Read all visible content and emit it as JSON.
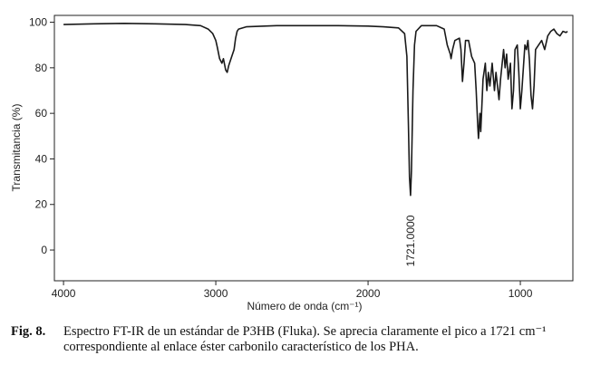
{
  "chart_data": {
    "type": "line",
    "xlabel": "Número de onda (cm⁻¹)",
    "ylabel": "Transmitancia (%)",
    "annotation": {
      "text": "1721.0000",
      "x": 1721
    },
    "color": "#1a1a1a",
    "xlim": [
      4060,
      655
    ],
    "xticks": [
      4000,
      3000,
      2000,
      1000
    ],
    "ylim": [
      -13.5,
      103
    ],
    "yticks": [
      0,
      20,
      40,
      60,
      80,
      100
    ],
    "x": [
      4000,
      3800,
      3600,
      3400,
      3200,
      3100,
      3050,
      3020,
      3000,
      2990,
      2975,
      2960,
      2950,
      2935,
      2925,
      2915,
      2900,
      2880,
      2870,
      2860,
      2850,
      2800,
      2600,
      2400,
      2200,
      2000,
      1900,
      1800,
      1760,
      1745,
      1735,
      1728,
      1721,
      1715,
      1705,
      1695,
      1685,
      1650,
      1550,
      1500,
      1480,
      1460,
      1455,
      1445,
      1430,
      1400,
      1390,
      1380,
      1370,
      1360,
      1340,
      1320,
      1300,
      1290,
      1280,
      1275,
      1265,
      1260,
      1245,
      1230,
      1220,
      1210,
      1200,
      1185,
      1170,
      1160,
      1140,
      1130,
      1110,
      1100,
      1090,
      1080,
      1065,
      1055,
      1045,
      1035,
      1020,
      1010,
      1000,
      990,
      980,
      970,
      960,
      950,
      940,
      930,
      920,
      910,
      900,
      880,
      860,
      840,
      820,
      800,
      780,
      760,
      740,
      720,
      700,
      690
    ],
    "values": [
      99,
      99.3,
      99.5,
      99.3,
      99,
      98.5,
      97,
      95,
      92,
      89,
      84,
      82,
      84,
      79,
      78,
      81,
      84,
      88,
      93,
      96,
      97,
      98,
      98.5,
      98.5,
      98.5,
      98.3,
      98,
      97.5,
      95,
      85,
      55,
      32,
      24,
      35,
      70,
      90,
      96,
      98.5,
      98.5,
      97,
      90,
      86,
      84,
      88,
      92,
      93,
      88,
      74,
      82,
      92,
      92,
      85,
      82,
      70,
      55,
      49,
      60,
      52,
      75,
      82,
      70,
      78,
      72,
      82,
      70,
      78,
      66,
      75,
      88,
      80,
      86,
      75,
      82,
      62,
      70,
      88,
      90,
      78,
      62,
      70,
      80,
      90,
      88,
      92,
      83,
      68,
      62,
      72,
      88,
      90,
      92,
      88,
      94,
      96,
      97,
      95,
      94,
      96,
      95.5,
      96
    ]
  },
  "figure_label": "Fig. 8.",
  "caption": "Espectro FT-IR de un estándar de P3HB (Fluka). Se aprecia claramente el pico a 1721 cm⁻¹ correspondiente al enlace éster carbonilo característico de los PHA."
}
